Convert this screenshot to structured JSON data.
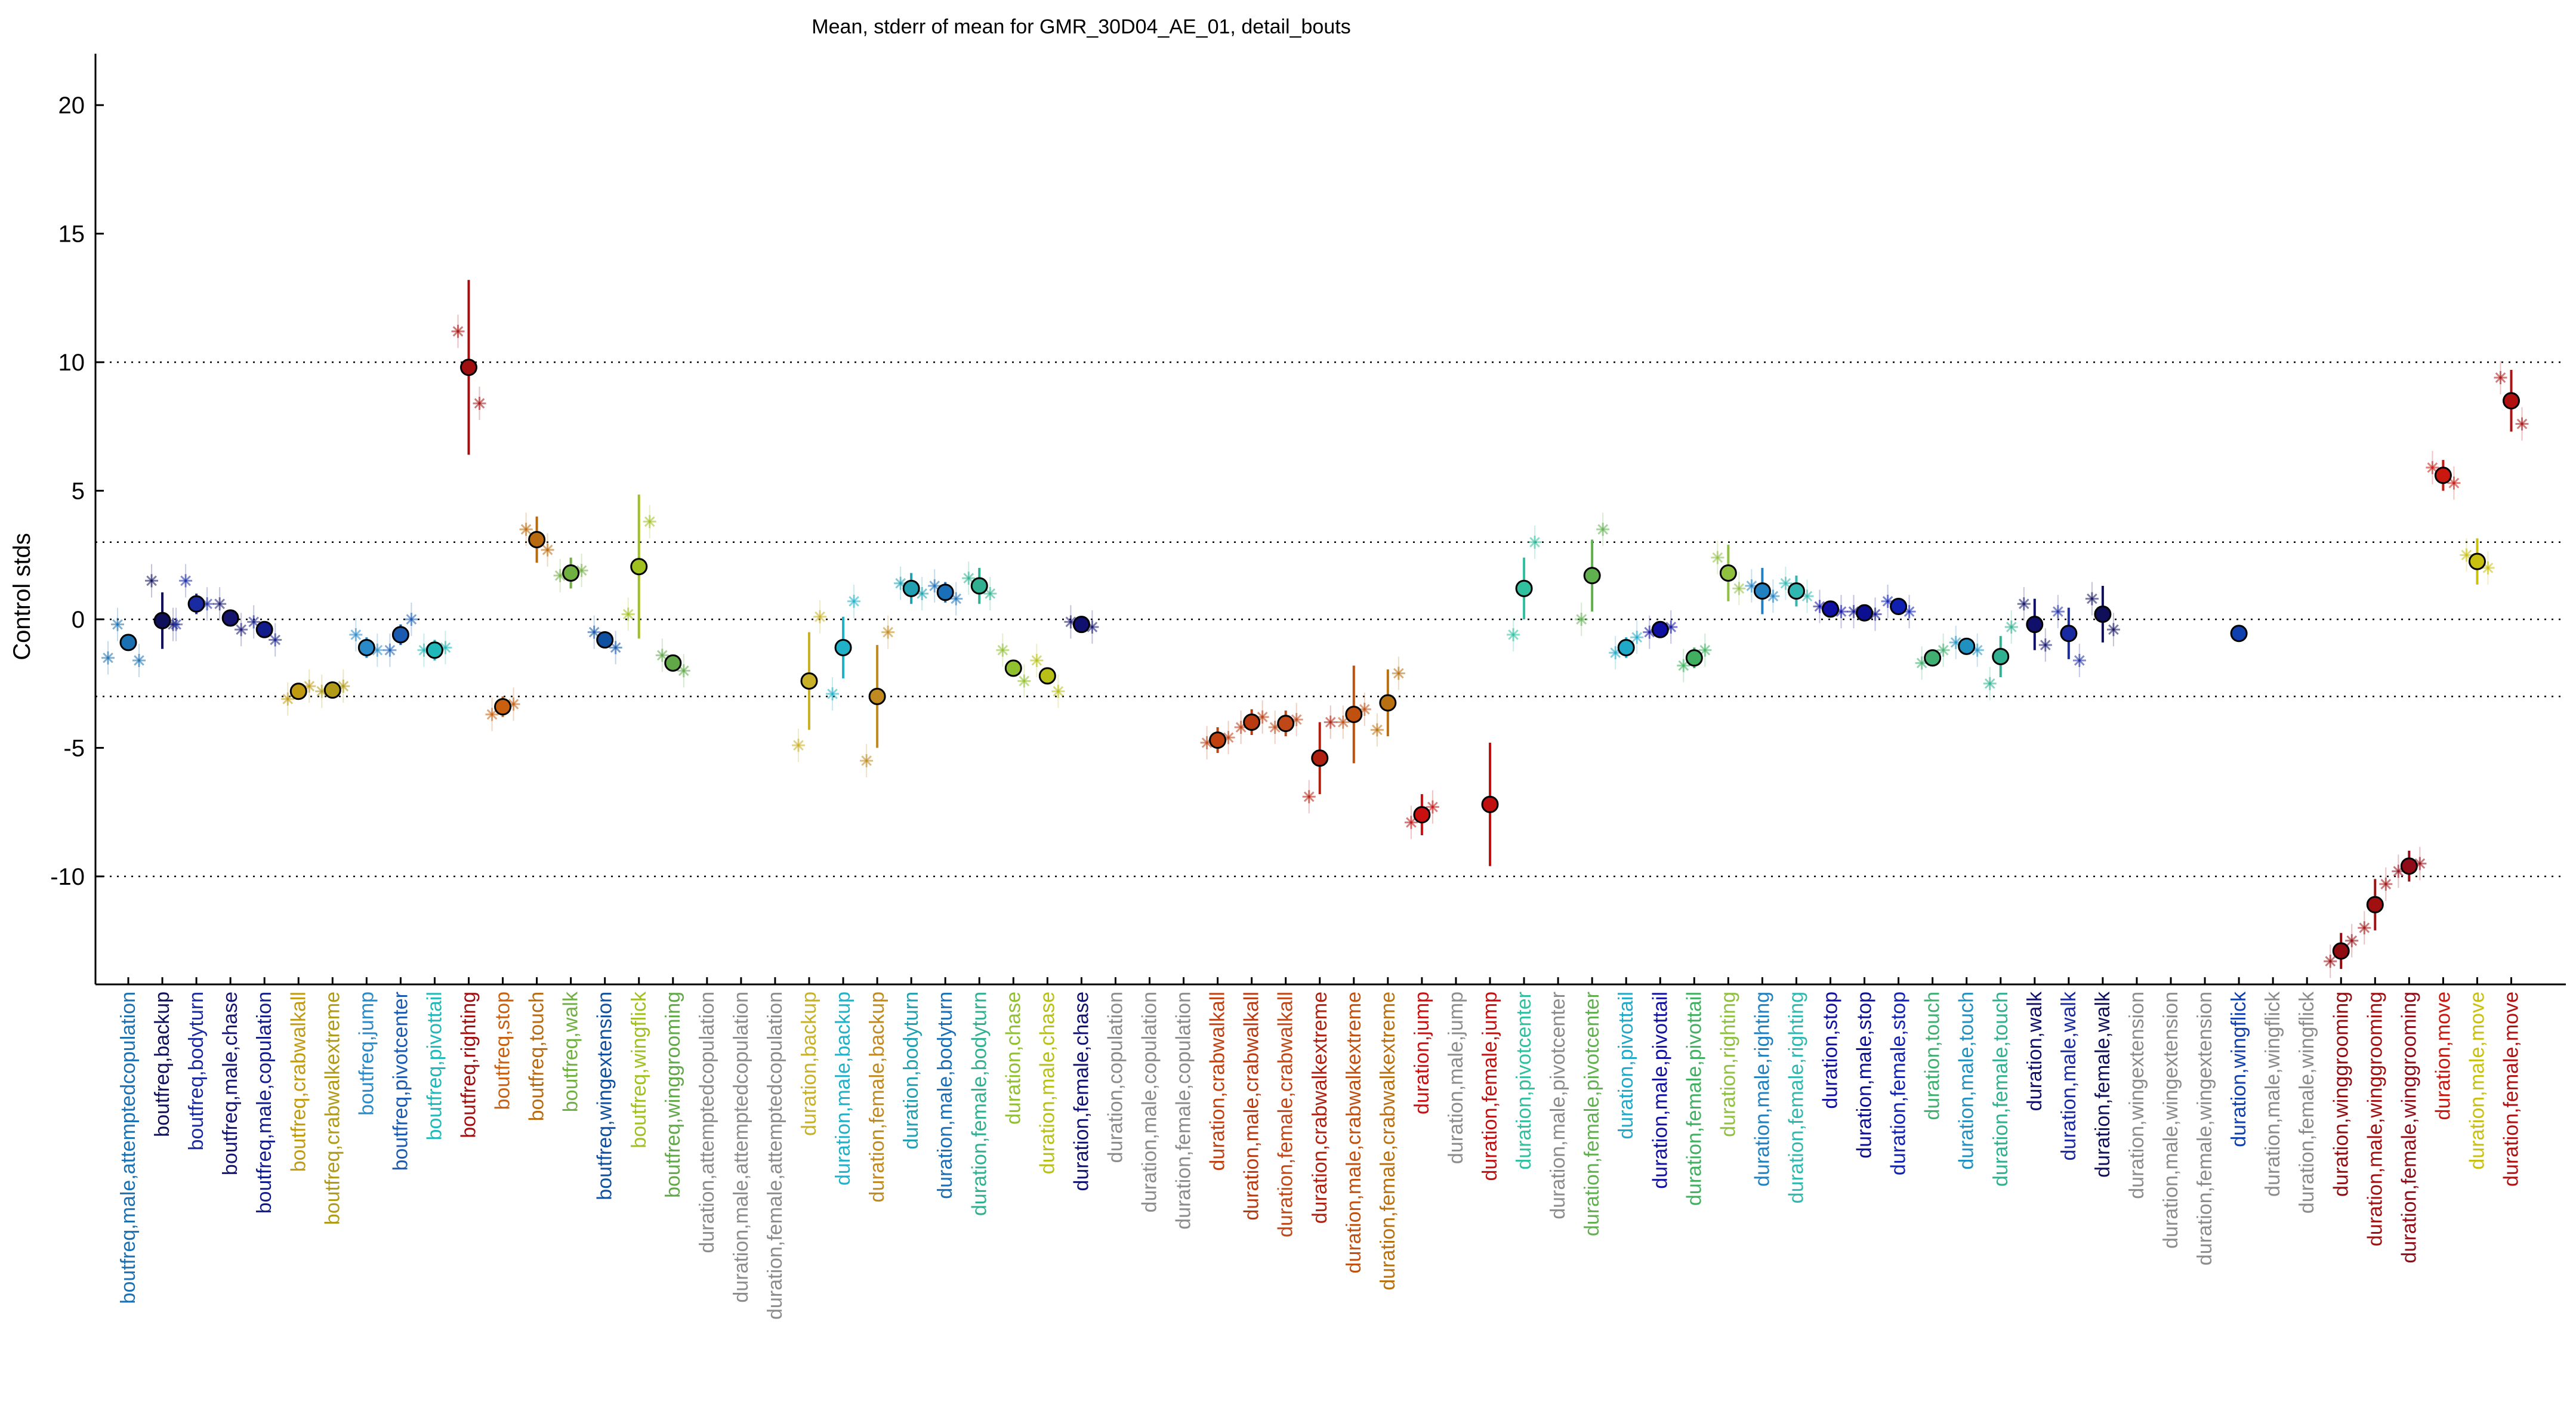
{
  "chart_data": {
    "type": "scatter",
    "title": "Mean, stderr of mean for GMR_30D04_AE_01, detail_bouts",
    "ylabel": "Control stds",
    "ylim": [
      -14.2,
      22
    ],
    "yticks": [
      -10,
      -5,
      0,
      5,
      10,
      15,
      20
    ],
    "hlines": [
      -10,
      -3,
      0,
      3,
      10
    ],
    "grid": false,
    "categories": [
      {
        "label": "boutfreq,male,attemptedcopulation",
        "color": "#1a70b0",
        "mean": -0.9,
        "sem": 0.3,
        "m1": -0.2,
        "m2": -1.6,
        "m3": -1.5
      },
      {
        "label": "boutfreq,backup",
        "color": "#10105a",
        "mean": -0.05,
        "sem": 1.1,
        "m1": 1.5,
        "m2": -0.2,
        "m3": null
      },
      {
        "label": "boutfreq,bodyturn",
        "color": "#1a2aa0",
        "mean": 0.6,
        "sem": 0.4,
        "m1": 1.5,
        "m2": 0.6,
        "m3": -0.2
      },
      {
        "label": "boutfreq,male,chase",
        "color": "#151570",
        "mean": 0.05,
        "sem": 0.3,
        "m1": 0.6,
        "m2": -0.4,
        "m3": null
      },
      {
        "label": "boutfreq,male,copulation",
        "color": "#121c8a",
        "mean": -0.4,
        "sem": 0.3,
        "m1": -0.1,
        "m2": -0.8,
        "m3": null
      },
      {
        "label": "boutfreq,crabwalkall",
        "color": "#c09a10",
        "mean": -2.8,
        "sem": 0.3,
        "m1": -3.1,
        "m2": -2.6,
        "m3": null
      },
      {
        "label": "boutfreq,crabwalkextreme",
        "color": "#b09a18",
        "mean": -2.75,
        "sem": 0.3,
        "m1": -2.8,
        "m2": -2.6,
        "m3": null
      },
      {
        "label": "boutfreq,jump",
        "color": "#2a8ac8",
        "mean": -1.1,
        "sem": 0.4,
        "m1": -0.6,
        "m2": -1.2,
        "m3": null
      },
      {
        "label": "boutfreq,pivotcenter",
        "color": "#1a5ab0",
        "mean": -0.6,
        "sem": 0.4,
        "m1": -1.2,
        "m2": 0.0,
        "m3": null
      },
      {
        "label": "boutfreq,pivottail",
        "color": "#20b8b8",
        "mean": -1.2,
        "sem": 0.4,
        "m1": -1.2,
        "m2": -1.1,
        "m3": null
      },
      {
        "label": "boutfreq,righting",
        "color": "#a01010",
        "mean": 9.8,
        "sem": 3.4,
        "m1": 11.2,
        "m2": 8.4,
        "m3": null
      },
      {
        "label": "boutfreq,stop",
        "color": "#c86010",
        "mean": -3.4,
        "sem": 0.4,
        "m1": -3.7,
        "m2": -3.3,
        "m3": null
      },
      {
        "label": "boutfreq,touch",
        "color": "#b86a10",
        "mean": 3.1,
        "sem": 0.9,
        "m1": 3.5,
        "m2": 2.7,
        "m3": null
      },
      {
        "label": "boutfreq,walk",
        "color": "#70b040",
        "mean": 1.8,
        "sem": 0.6,
        "m1": 1.7,
        "m2": 1.9,
        "m3": null
      },
      {
        "label": "boutfreq,wingextension",
        "color": "#1050a0",
        "mean": -0.8,
        "sem": 0.3,
        "m1": -0.5,
        "m2": -1.1,
        "m3": null
      },
      {
        "label": "boutfreq,wingflick",
        "color": "#a0c020",
        "mean": 2.05,
        "sem": 2.8,
        "m1": 0.2,
        "m2": 3.8,
        "m3": null
      },
      {
        "label": "boutfreq,winggrooming",
        "color": "#60a848",
        "mean": -1.7,
        "sem": 0.3,
        "m1": -1.4,
        "m2": -2.0,
        "m3": null
      },
      {
        "label": "duration,attemptedcopulation",
        "color": "#8c8c8c",
        "mean": null,
        "sem": null,
        "m1": null,
        "m2": null,
        "m3": null
      },
      {
        "label": "duration,male,attemptedcopulation",
        "color": "#8c8c8c",
        "mean": null,
        "sem": null,
        "m1": null,
        "m2": null,
        "m3": null
      },
      {
        "label": "duration,female,attemptedcopulation",
        "color": "#8c8c8c",
        "mean": null,
        "sem": null,
        "m1": null,
        "m2": null,
        "m3": null
      },
      {
        "label": "duration,backup",
        "color": "#c8b028",
        "mean": -2.4,
        "sem": 1.9,
        "m1": -4.9,
        "m2": 0.1,
        "m3": null
      },
      {
        "label": "duration,male,backup",
        "color": "#20b0c8",
        "mean": -1.1,
        "sem": 1.2,
        "m1": -2.9,
        "m2": 0.7,
        "m3": null
      },
      {
        "label": "duration,female,backup",
        "color": "#c08a20",
        "mean": -3.0,
        "sem": 2.0,
        "m1": -5.5,
        "m2": -0.5,
        "m3": null
      },
      {
        "label": "duration,bodyturn",
        "color": "#20a0b0",
        "mean": 1.2,
        "sem": 0.6,
        "m1": 1.4,
        "m2": 1.0,
        "m3": null
      },
      {
        "label": "duration,male,bodyturn",
        "color": "#1a70b8",
        "mean": 1.05,
        "sem": 0.4,
        "m1": 1.3,
        "m2": 0.8,
        "m3": null
      },
      {
        "label": "duration,female,bodyturn",
        "color": "#30b090",
        "mean": 1.3,
        "sem": 0.7,
        "m1": 1.6,
        "m2": 1.0,
        "m3": null
      },
      {
        "label": "duration,chase",
        "color": "#90c030",
        "mean": -1.9,
        "sem": 0.3,
        "m1": -1.2,
        "m2": -2.4,
        "m3": null
      },
      {
        "label": "duration,male,chase",
        "color": "#b8c018",
        "mean": -2.2,
        "sem": 0.3,
        "m1": -1.6,
        "m2": -2.8,
        "m3": null
      },
      {
        "label": "duration,female,chase",
        "color": "#101070",
        "mean": -0.2,
        "sem": 0.2,
        "m1": -0.1,
        "m2": -0.3,
        "m3": null
      },
      {
        "label": "duration,copulation",
        "color": "#8c8c8c",
        "mean": null,
        "sem": null,
        "m1": null,
        "m2": null,
        "m3": null
      },
      {
        "label": "duration,male,copulation",
        "color": "#8c8c8c",
        "mean": null,
        "sem": null,
        "m1": null,
        "m2": null,
        "m3": null
      },
      {
        "label": "duration,female,copulation",
        "color": "#8c8c8c",
        "mean": null,
        "sem": null,
        "m1": null,
        "m2": null,
        "m3": null
      },
      {
        "label": "duration,crabwalkall",
        "color": "#c04010",
        "mean": -4.7,
        "sem": 0.5,
        "m1": -4.8,
        "m2": -4.6,
        "m3": null
      },
      {
        "label": "duration,male,crabwalkall",
        "color": "#b83a10",
        "mean": -4.0,
        "sem": 0.5,
        "m1": -4.2,
        "m2": -3.8,
        "m3": null
      },
      {
        "label": "duration,female,crabwalkall",
        "color": "#c04818",
        "mean": -4.05,
        "sem": 0.5,
        "m1": -4.2,
        "m2": -3.9,
        "m3": null
      },
      {
        "label": "duration,crabwalkextreme",
        "color": "#b02010",
        "mean": -5.4,
        "sem": 1.4,
        "m1": -6.9,
        "m2": -4.0,
        "m3": null
      },
      {
        "label": "duration,male,crabwalkextreme",
        "color": "#c05010",
        "mean": -3.7,
        "sem": 1.9,
        "m1": -4.0,
        "m2": -3.5,
        "m3": null
      },
      {
        "label": "duration,female,crabwalkextreme",
        "color": "#b87010",
        "mean": -3.25,
        "sem": 1.3,
        "m1": -4.3,
        "m2": -2.1,
        "m3": null
      },
      {
        "label": "duration,jump",
        "color": "#c81010",
        "mean": -7.6,
        "sem": 0.8,
        "m1": -7.9,
        "m2": -7.3,
        "m3": null
      },
      {
        "label": "duration,male,jump",
        "color": "#8c8c8c",
        "mean": null,
        "sem": null,
        "m1": null,
        "m2": null,
        "m3": null
      },
      {
        "label": "duration,female,jump",
        "color": "#c01010",
        "mean": -7.2,
        "sem": 2.4,
        "m1": null,
        "m2": null,
        "m3": null
      },
      {
        "label": "duration,pivotcenter",
        "color": "#30c0a0",
        "mean": 1.2,
        "sem": 1.2,
        "m1": -0.6,
        "m2": 3.0,
        "m3": null
      },
      {
        "label": "duration,male,pivotcenter",
        "color": "#8c8c8c",
        "mean": null,
        "sem": null,
        "m1": null,
        "m2": null,
        "m3": null
      },
      {
        "label": "duration,female,pivotcenter",
        "color": "#60b050",
        "mean": 1.7,
        "sem": 1.4,
        "m1": 0.0,
        "m2": 3.5,
        "m3": null
      },
      {
        "label": "duration,pivottail",
        "color": "#20a8c8",
        "mean": -1.1,
        "sem": 0.4,
        "m1": -1.3,
        "m2": -0.7,
        "m3": null
      },
      {
        "label": "duration,male,pivottail",
        "color": "#1010a0",
        "mean": -0.4,
        "sem": 0.3,
        "m1": -0.5,
        "m2": -0.3,
        "m3": null
      },
      {
        "label": "duration,female,pivottail",
        "color": "#40b060",
        "mean": -1.5,
        "sem": 0.4,
        "m1": -1.8,
        "m2": -1.2,
        "m3": null
      },
      {
        "label": "duration,righting",
        "color": "#90c040",
        "mean": 1.8,
        "sem": 1.1,
        "m1": 2.4,
        "m2": 1.2,
        "m3": null
      },
      {
        "label": "duration,male,righting",
        "color": "#2080c0",
        "mean": 1.1,
        "sem": 0.9,
        "m1": 1.3,
        "m2": 0.9,
        "m3": null
      },
      {
        "label": "duration,female,righting",
        "color": "#30b8b0",
        "mean": 1.1,
        "sem": 0.6,
        "m1": 1.4,
        "m2": 0.9,
        "m3": null
      },
      {
        "label": "duration,stop",
        "color": "#1010a0",
        "mean": 0.4,
        "sem": 0.2,
        "m1": 0.5,
        "m2": 0.3,
        "m3": null
      },
      {
        "label": "duration,male,stop",
        "color": "#0c1090",
        "mean": 0.25,
        "sem": 0.2,
        "m1": 0.3,
        "m2": 0.2,
        "m3": null
      },
      {
        "label": "duration,female,stop",
        "color": "#1020b0",
        "mean": 0.5,
        "sem": 0.3,
        "m1": 0.7,
        "m2": 0.3,
        "m3": null
      },
      {
        "label": "duration,touch",
        "color": "#40b070",
        "mean": -1.5,
        "sem": 0.3,
        "m1": -1.7,
        "m2": -1.2,
        "m3": null
      },
      {
        "label": "duration,male,touch",
        "color": "#2090c0",
        "mean": -1.05,
        "sem": 0.3,
        "m1": -0.9,
        "m2": -1.2,
        "m3": null
      },
      {
        "label": "duration,female,touch",
        "color": "#30b090",
        "mean": -1.45,
        "sem": 0.8,
        "m1": -2.5,
        "m2": -0.3,
        "m3": null
      },
      {
        "label": "duration,walk",
        "color": "#10106a",
        "mean": -0.2,
        "sem": 1.0,
        "m1": 0.6,
        "m2": -1.0,
        "m3": null
      },
      {
        "label": "duration,male,walk",
        "color": "#1a2aa0",
        "mean": -0.55,
        "sem": 1.0,
        "m1": 0.3,
        "m2": -1.6,
        "m3": null
      },
      {
        "label": "duration,female,walk",
        "color": "#10105a",
        "mean": 0.2,
        "sem": 1.1,
        "m1": 0.8,
        "m2": -0.4,
        "m3": null
      },
      {
        "label": "duration,wingextension",
        "color": "#8c8c8c",
        "mean": null,
        "sem": null,
        "m1": null,
        "m2": null,
        "m3": null
      },
      {
        "label": "duration,male,wingextension",
        "color": "#8c8c8c",
        "mean": null,
        "sem": null,
        "m1": null,
        "m2": null,
        "m3": null
      },
      {
        "label": "duration,female,wingextension",
        "color": "#8c8c8c",
        "mean": null,
        "sem": null,
        "m1": null,
        "m2": null,
        "m3": null
      },
      {
        "label": "duration,wingflick",
        "color": "#1040b0",
        "mean": -0.55,
        "sem": 0.1,
        "m1": null,
        "m2": null,
        "m3": null
      },
      {
        "label": "duration,male,wingflick",
        "color": "#8c8c8c",
        "mean": null,
        "sem": null,
        "m1": null,
        "m2": null,
        "m3": null
      },
      {
        "label": "duration,female,wingflick",
        "color": "#8c8c8c",
        "mean": null,
        "sem": null,
        "m1": null,
        "m2": null,
        "m3": null
      },
      {
        "label": "duration,winggrooming",
        "color": "#900c10",
        "mean": -12.9,
        "sem": 0.7,
        "m1": -13.3,
        "m2": -12.5,
        "m3": null
      },
      {
        "label": "duration,male,winggrooming",
        "color": "#a01010",
        "mean": -11.1,
        "sem": 1.0,
        "m1": -12.0,
        "m2": -10.3,
        "m3": null
      },
      {
        "label": "duration,female,winggrooming",
        "color": "#900c18",
        "mean": -9.6,
        "sem": 0.6,
        "m1": -9.8,
        "m2": -9.5,
        "m3": null
      },
      {
        "label": "duration,move",
        "color": "#c81810",
        "mean": 5.6,
        "sem": 0.6,
        "m1": 5.9,
        "m2": 5.3,
        "m3": null
      },
      {
        "label": "duration,male,move",
        "color": "#c8c010",
        "mean": 2.25,
        "sem": 0.9,
        "m1": 2.5,
        "m2": 2.0,
        "m3": null
      },
      {
        "label": "duration,female,move",
        "color": "#b01010",
        "mean": 8.5,
        "sem": 1.2,
        "m1": 9.4,
        "m2": 7.6,
        "m3": null
      }
    ]
  }
}
